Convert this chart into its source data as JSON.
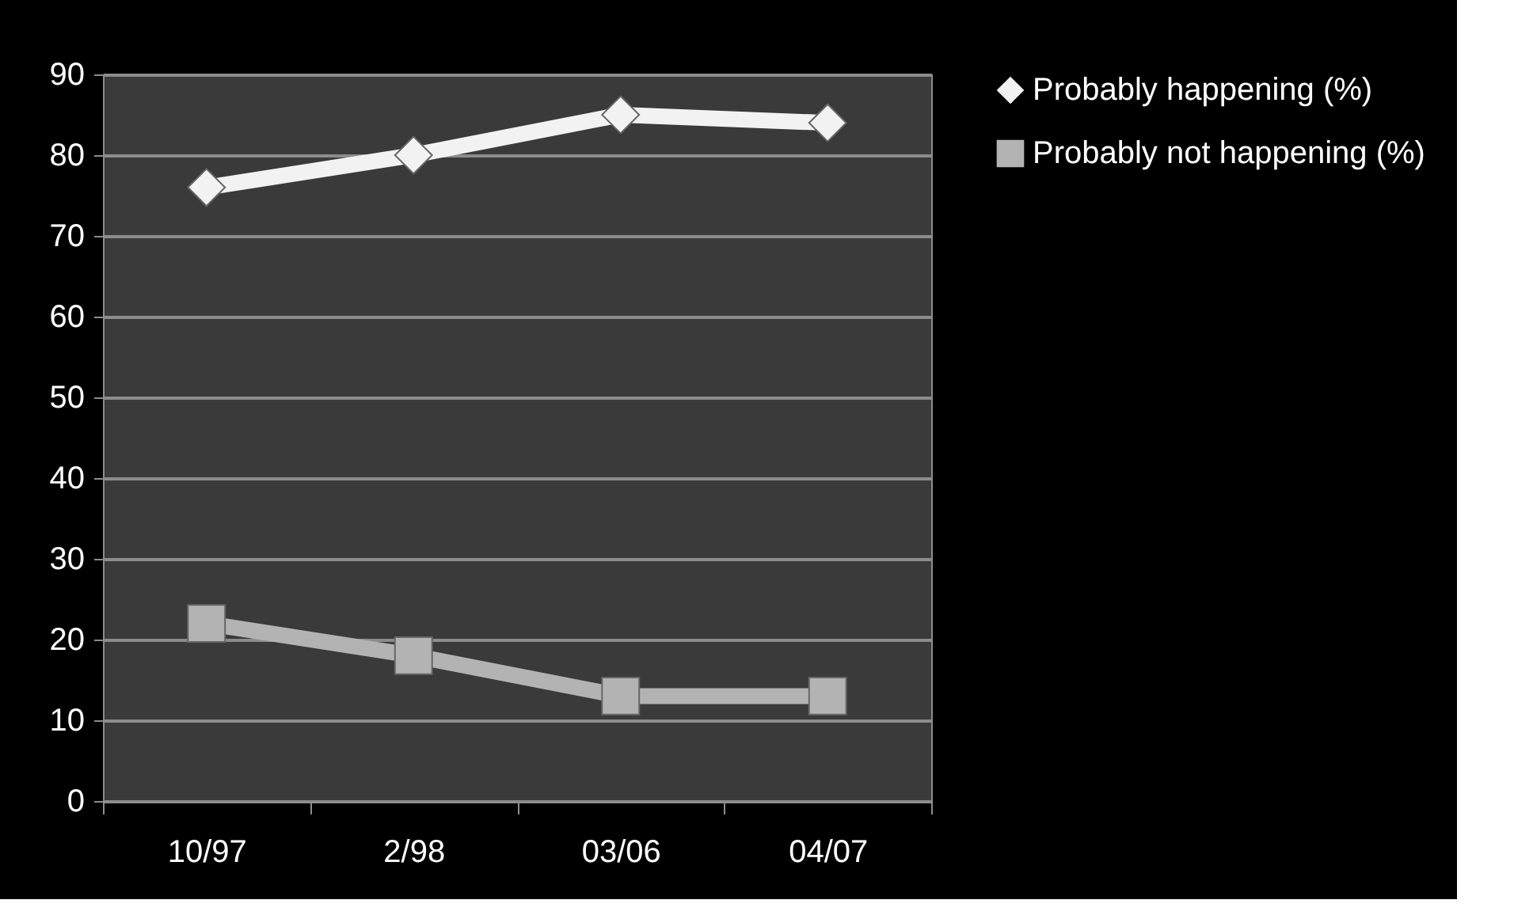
{
  "chart_data": {
    "type": "line",
    "categories": [
      "10/97",
      "2/98",
      "03/06",
      "04/07"
    ],
    "series": [
      {
        "name": "Probably happening (%)",
        "color": "#f2f2f2",
        "marker": "diamond",
        "values": [
          76,
          80,
          85,
          84
        ]
      },
      {
        "name": "Probably not happening (%)",
        "color": "#b3b3b3",
        "marker": "square",
        "values": [
          22,
          18,
          13,
          13
        ]
      }
    ],
    "ylim": [
      0,
      90
    ],
    "yticks": [
      0,
      10,
      20,
      30,
      40,
      50,
      60,
      70,
      80,
      90
    ],
    "grid": "y",
    "legend": "right",
    "line_style": "solid"
  }
}
